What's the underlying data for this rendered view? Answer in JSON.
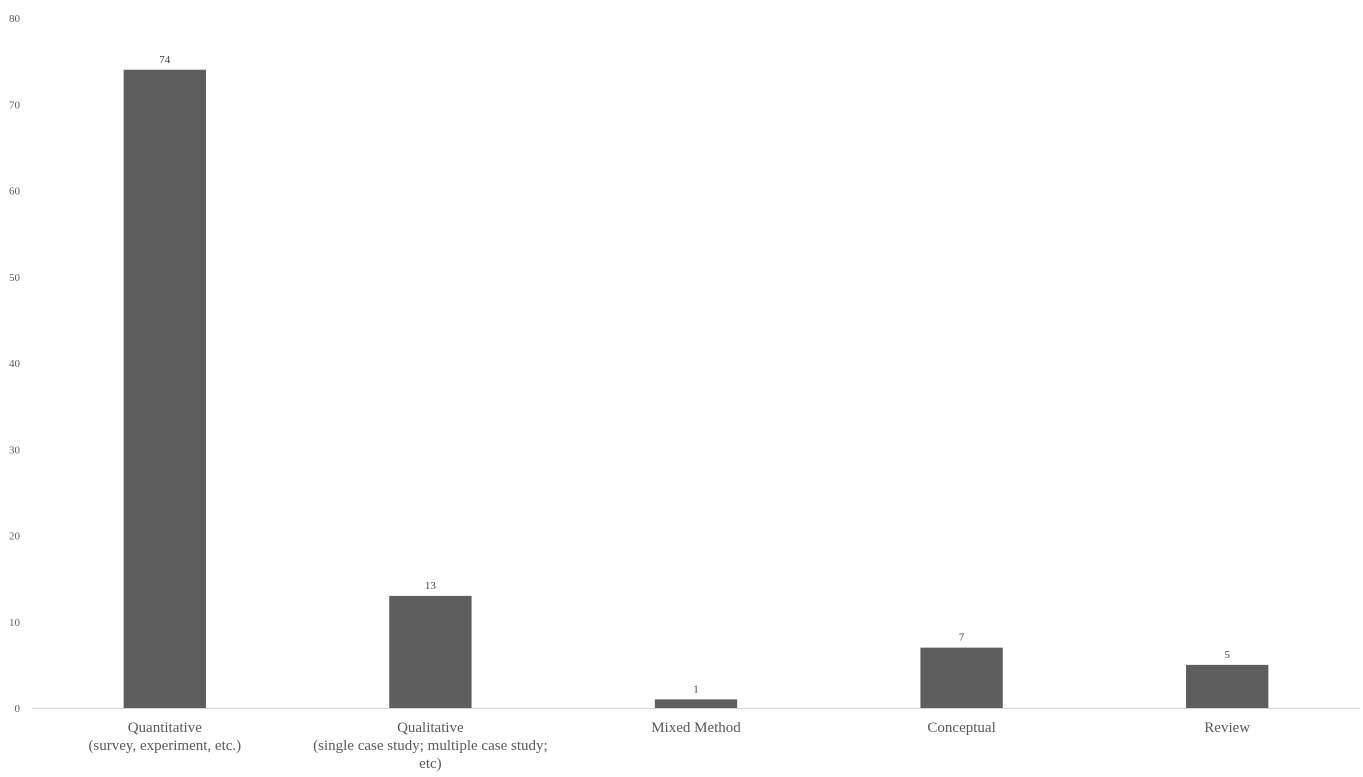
{
  "chart_data": {
    "type": "bar",
    "title": "",
    "xlabel": "",
    "ylabel": "",
    "categories": [
      [
        "Quantitative",
        "(survey, experiment, etc.)"
      ],
      [
        "Qualitative",
        "(single case study; multiple case study;",
        "etc)"
      ],
      [
        "Mixed Method"
      ],
      [
        "Conceptual"
      ],
      [
        "Review"
      ]
    ],
    "values": [
      74,
      13,
      1,
      7,
      5
    ],
    "ylim": [
      0,
      80
    ],
    "yticks": [
      0,
      10,
      20,
      30,
      40,
      50,
      60,
      70,
      80
    ],
    "grid": false,
    "legend": "none",
    "bar_color": "#5e5e5e",
    "axis_color": "#d9d9d9"
  }
}
